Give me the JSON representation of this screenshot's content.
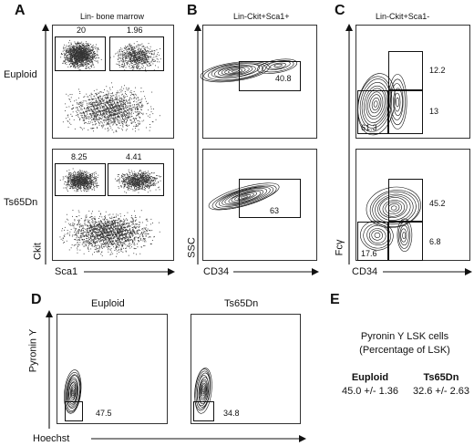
{
  "panels": {
    "A": {
      "letter": "A",
      "title": "Lin- bone marrow",
      "row_labels": [
        "Euploid",
        "Ts65Dn"
      ],
      "y_axis": "Ckit",
      "x_axis": "Sca1",
      "gates": [
        {
          "row": "Euploid",
          "values": [
            "20",
            "1.96"
          ]
        },
        {
          "row": "Ts65Dn",
          "values": [
            "8.25",
            "4.41"
          ]
        }
      ]
    },
    "B": {
      "letter": "B",
      "title": "Lin-Ckit+Sca1+",
      "y_axis": "SSC",
      "x_axis": "CD34",
      "gates": [
        {
          "row": "Euploid",
          "values": [
            "40.8"
          ]
        },
        {
          "row": "Ts65Dn",
          "values": [
            "63"
          ]
        }
      ]
    },
    "C": {
      "letter": "C",
      "title": "Lin-Ckit+Sca1-",
      "y_axis": "Fcγ",
      "x_axis": "CD34",
      "gates": [
        {
          "row": "Euploid",
          "values": [
            "12.2",
            "13",
            "61.3"
          ]
        },
        {
          "row": "Ts65Dn",
          "values": [
            "45.2",
            "6.8",
            "17.6"
          ]
        }
      ]
    },
    "D": {
      "letter": "D",
      "col_labels": [
        "Euploid",
        "Ts65Dn"
      ],
      "y_axis": "Pyronin Y",
      "x_axis": "Hoechst",
      "gates": [
        {
          "col": "Euploid",
          "values": [
            "47.5"
          ]
        },
        {
          "col": "Ts65Dn",
          "values": [
            "34.8"
          ]
        }
      ]
    },
    "E": {
      "letter": "E",
      "title_line1": "Pyronin Y LSK cells",
      "title_line2": "(Percentage of LSK)",
      "columns": [
        {
          "name": "Euploid",
          "value": "45.0 +/- 1.36"
        },
        {
          "name": "Ts65Dn",
          "value": "32.6 +/- 2.63"
        }
      ]
    }
  }
}
